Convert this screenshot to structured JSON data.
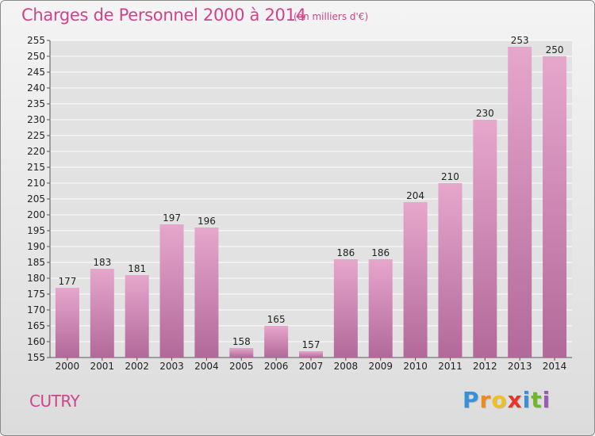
{
  "title": "Charges de Personnel 2000 à 2014",
  "unit_note": "(en milliers d'€)",
  "commune": "CUTRY",
  "logo": {
    "letters": [
      "P",
      "r",
      "o",
      "x",
      "i",
      "t",
      "i"
    ],
    "colors": [
      "#3a8fd9",
      "#f08a1c",
      "#f0c020",
      "#e8342a",
      "#3a8fd9",
      "#6cb82a",
      "#9b59b6"
    ]
  },
  "colors": {
    "title": "#d0438a",
    "bar_top": "#e6a7cc",
    "bar_bottom": "#b2699a",
    "grid": "#ffffff"
  },
  "chart_data": {
    "type": "bar",
    "categories": [
      "2000",
      "2001",
      "2002",
      "2003",
      "2004",
      "2005",
      "2006",
      "2007",
      "2008",
      "2009",
      "2010",
      "2011",
      "2012",
      "2013",
      "2014"
    ],
    "values": [
      177,
      183,
      181,
      197,
      196,
      158,
      165,
      157,
      186,
      186,
      204,
      210,
      230,
      253,
      250
    ],
    "ylim": [
      155,
      255
    ],
    "yticks": [
      155,
      160,
      165,
      170,
      175,
      180,
      185,
      190,
      195,
      200,
      205,
      210,
      215,
      220,
      225,
      230,
      235,
      240,
      245,
      250,
      255
    ],
    "grid": true
  }
}
